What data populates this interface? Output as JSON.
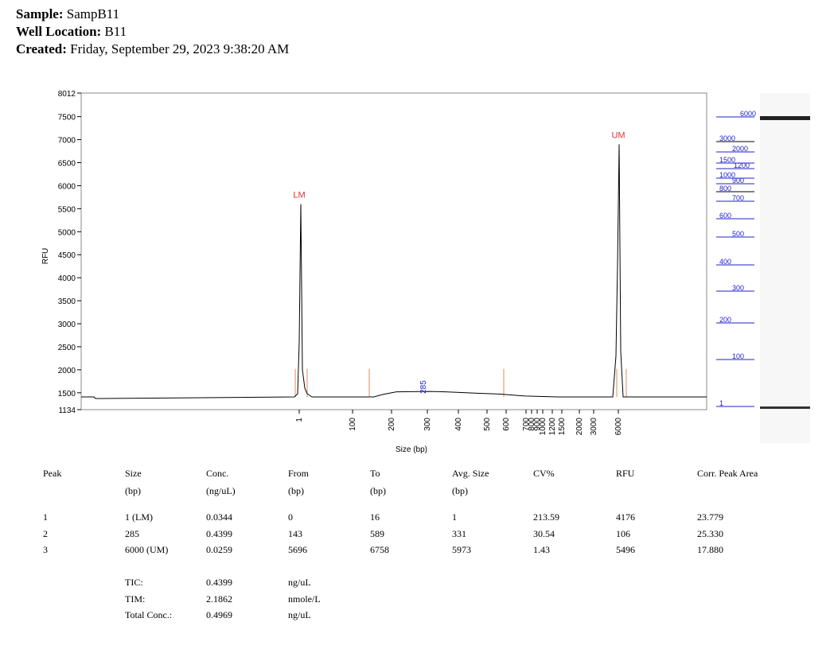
{
  "header": {
    "sample_label": "Sample:",
    "sample_value": "SampB11",
    "well_label": "Well Location:",
    "well_value": "B11",
    "created_label": "Created:",
    "created_value": "Friday, September 29, 2023 9:38:20 AM"
  },
  "chart_data": {
    "type": "line",
    "ylabel": "RFU",
    "xlabel": "Size (bp)",
    "ylim": [
      1134,
      8012
    ],
    "y_ticks": [
      1134,
      1500,
      2000,
      2500,
      3000,
      3500,
      4000,
      4500,
      5000,
      5500,
      6000,
      6500,
      7000,
      7500,
      8012
    ],
    "x_ticks": [
      "1",
      "100",
      "200",
      "300",
      "400",
      "500",
      "600",
      "700",
      "800",
      "900",
      "1000",
      "1200",
      "1500",
      "2000",
      "3000",
      "6000"
    ],
    "peak_labels": [
      {
        "text": "LM",
        "size_bp": 1,
        "rfu": 5600,
        "color": "#e03030"
      },
      {
        "text": "285",
        "size_bp": 285,
        "rfu": 1620,
        "color": "#2222cc"
      },
      {
        "text": "UM",
        "size_bp": 6000,
        "rfu": 6900,
        "color": "#e03030"
      }
    ],
    "baseline_rfu": 1410,
    "gel_ladder": [
      "6000",
      "3000",
      "2000",
      "1500",
      "1200",
      "1000",
      "900",
      "800",
      "700",
      "600",
      "500",
      "400",
      "300",
      "200",
      "100",
      "1"
    ],
    "colors": {
      "trace": "#000000",
      "marker": "#e03030",
      "boundary": "#e08a5a",
      "ladder": "#2222cc"
    }
  },
  "table": {
    "headers": [
      "Peak",
      "Size",
      "Conc.",
      "From",
      "To",
      "Avg. Size",
      "CV%",
      "RFU",
      "Corr. Peak Area"
    ],
    "units": [
      "",
      "(bp)",
      "(ng/uL)",
      "(bp)",
      "(bp)",
      "(bp)",
      "",
      "",
      ""
    ],
    "rows": [
      [
        "1",
        "1 (LM)",
        "0.0344",
        "0",
        "16",
        "1",
        "213.59",
        "4176",
        "23.779"
      ],
      [
        "2",
        "285",
        "0.4399",
        "143",
        "589",
        "331",
        "30.54",
        "106",
        "25.330"
      ],
      [
        "3",
        "6000 (UM)",
        "0.0259",
        "5696",
        "6758",
        "5973",
        "1.43",
        "5496",
        "17.880"
      ]
    ],
    "summary": [
      {
        "label": "TIC:",
        "value": "0.4399",
        "unit": "ng/uL"
      },
      {
        "label": "TIM:",
        "value": "2.1862",
        "unit": "nmole/L"
      },
      {
        "label": "Total Conc.:",
        "value": "0.4969",
        "unit": "ng/uL"
      }
    ]
  }
}
